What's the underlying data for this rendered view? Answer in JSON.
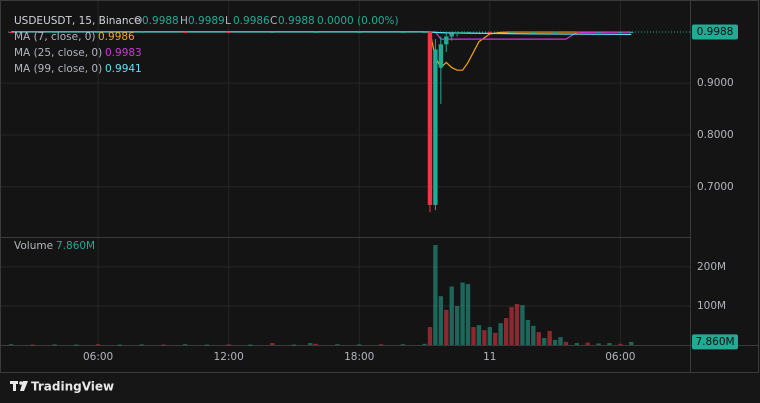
{
  "chart_data": {
    "type": "candlestick",
    "title": "USDEUSDT, 15, Binance",
    "ohlc_legend": [
      {
        "key": "O",
        "value": 0.9988
      },
      {
        "key": "H",
        "value": 0.9989
      },
      {
        "key": "L",
        "value": 0.9986
      },
      {
        "key": "C",
        "value": 0.9988
      }
    ],
    "change": "0.0000 (0.00%)",
    "up_color": "#22ab94",
    "down_color": "#f23645",
    "x": [
      2,
      4,
      6,
      8,
      10,
      12,
      14,
      16,
      18,
      20,
      21,
      21.25,
      21.5,
      21.75,
      22,
      22.25,
      22.5,
      22.75,
      23,
      24,
      25,
      26,
      27,
      28,
      29,
      30,
      30.5
    ],
    "open": [
      0.9988,
      0.9987,
      0.9988,
      0.9988,
      0.9989,
      0.9988,
      0.9987,
      0.9988,
      0.9988,
      0.9988,
      0.9988,
      0.9988,
      0.665,
      0.93,
      0.975,
      0.99,
      0.996,
      0.998,
      0.9986,
      0.9988,
      0.9987,
      0.9988,
      0.9988,
      0.9989,
      0.9988,
      0.9988,
      0.9988
    ],
    "high": [
      0.999,
      0.9989,
      0.999,
      0.9989,
      0.999,
      0.999,
      0.9989,
      0.999,
      0.999,
      0.999,
      0.999,
      0.999,
      0.985,
      0.99,
      0.995,
      0.999,
      0.9995,
      0.9993,
      0.999,
      0.999,
      0.9989,
      0.999,
      0.999,
      0.999,
      0.999,
      0.999,
      0.9989
    ],
    "low": [
      0.9986,
      0.9986,
      0.9987,
      0.9986,
      0.9987,
      0.9986,
      0.9986,
      0.9987,
      0.9986,
      0.9987,
      0.9985,
      0.651,
      0.655,
      0.86,
      0.96,
      0.982,
      0.99,
      0.995,
      0.9975,
      0.9986,
      0.9986,
      0.9987,
      0.9986,
      0.9987,
      0.9986,
      0.9987,
      0.9986
    ],
    "close": [
      0.9987,
      0.9988,
      0.9988,
      0.9989,
      0.9988,
      0.9987,
      0.9988,
      0.9988,
      0.9988,
      0.9988,
      0.9988,
      0.665,
      0.965,
      0.975,
      0.99,
      0.996,
      0.998,
      0.9986,
      0.9988,
      0.9987,
      0.9988,
      0.9988,
      0.9989,
      0.9988,
      0.9988,
      0.9988,
      0.9988
    ],
    "last_price": 0.9988,
    "moving_averages": [
      {
        "name": "MA (7, close, 0)",
        "last": 0.9986,
        "color": "#f7a21b",
        "x": [
          2,
          21.25,
          21.5,
          21.75,
          22,
          22.25,
          22.5,
          22.75,
          23,
          23.5,
          24,
          24.5,
          25,
          30.5
        ],
        "values": [
          0.9988,
          0.9988,
          0.95,
          0.93,
          0.94,
          0.93,
          0.925,
          0.925,
          0.94,
          0.98,
          0.995,
          0.998,
          0.9986,
          0.9986
        ]
      },
      {
        "name": "MA (25, close, 0)",
        "last": 0.9983,
        "color": "#c93ad6",
        "x": [
          2,
          21.5,
          21.75,
          27.5,
          28,
          30.5
        ],
        "values": [
          0.9988,
          0.9988,
          0.985,
          0.985,
          0.998,
          0.9983
        ]
      },
      {
        "name": "MA (99, close, 0)",
        "last": 0.9941,
        "color": "#5fe3f0",
        "x": [
          2,
          21,
          22,
          26,
          30.5
        ],
        "values": [
          0.9988,
          0.9988,
          0.997,
          0.995,
          0.9941
        ]
      }
    ],
    "volume": {
      "name": "Volume",
      "last": {
        "value": 7860000,
        "label": "7.860M"
      },
      "x": [
        2,
        3,
        4,
        5,
        6,
        7,
        8,
        9,
        10,
        11,
        12,
        13,
        14,
        15,
        15.75,
        16,
        17,
        18,
        19,
        20,
        21,
        21.25,
        21.5,
        21.75,
        22,
        22.25,
        22.5,
        22.75,
        23,
        23.25,
        23.5,
        23.75,
        24,
        24.25,
        24.5,
        24.75,
        25,
        25.25,
        25.5,
        25.75,
        26,
        26.25,
        26.5,
        26.75,
        27,
        27.25,
        27.5,
        28,
        28.5,
        29,
        29.5,
        30,
        30.5
      ],
      "values": [
        2000000,
        1000000,
        1500000,
        1000000,
        2000000,
        1000000,
        1500000,
        1000000,
        2000000,
        1000000,
        1500000,
        1000000,
        5000000,
        1000000,
        5000000,
        3000000,
        2000000,
        1500000,
        2000000,
        2000000,
        3000000,
        46000000,
        256000000,
        125000000,
        90000000,
        150000000,
        100000000,
        160000000,
        156000000,
        46000000,
        51000000,
        38000000,
        46000000,
        31000000,
        56000000,
        69000000,
        97000000,
        105000000,
        102000000,
        64000000,
        49000000,
        33000000,
        18000000,
        36000000,
        13000000,
        20000000,
        8000000,
        5000000,
        6000000,
        4000000,
        5000000,
        3000000,
        7860000
      ],
      "colors": [
        "#22ab94",
        "#f23645",
        "#22ab94",
        "#22ab94",
        "#f23645",
        "#22ab94",
        "#22ab94",
        "#f23645",
        "#22ab94",
        "#22ab94",
        "#f23645",
        "#22ab94",
        "#f23645",
        "#22ab94",
        "#22ab94",
        "#f23645",
        "#22ab94",
        "#22ab94",
        "#f23645",
        "#22ab94",
        "#22ab94",
        "#f23645",
        "#22ab94",
        "#22ab94",
        "#f23645",
        "#22ab94",
        "#22ab94",
        "#22ab94",
        "#22ab94",
        "#f23645",
        "#22ab94",
        "#f23645",
        "#22ab94",
        "#f23645",
        "#22ab94",
        "#f23645",
        "#f23645",
        "#f23645",
        "#22ab94",
        "#22ab94",
        "#22ab94",
        "#f23645",
        "#22ab94",
        "#f23645",
        "#22ab94",
        "#22ab94",
        "#f23645",
        "#22ab94",
        "#f23645",
        "#22ab94",
        "#22ab94",
        "#f23645",
        "#22ab94"
      ],
      "ylim": [
        0,
        269000000
      ],
      "yticks": [
        {
          "value": 100000000,
          "label": "100M"
        },
        {
          "value": 200000000,
          "label": "200M"
        }
      ]
    },
    "xlim": [
      1.86,
      33.2
    ],
    "xticks": [
      {
        "value": 6,
        "label": "06:00"
      },
      {
        "value": 12,
        "label": "12:00"
      },
      {
        "value": 18,
        "label": "18:00"
      },
      {
        "value": 24,
        "label": "11"
      },
      {
        "value": 30,
        "label": "06:00"
      }
    ],
    "ylim": [
      0.607,
      1.045
    ],
    "yticks": [
      {
        "value": 0.9,
        "label": "0.9000"
      },
      {
        "value": 0.8,
        "label": "0.8000"
      },
      {
        "value": 0.7,
        "label": "0.7000"
      }
    ],
    "grid": true,
    "brand": "TradingView"
  }
}
